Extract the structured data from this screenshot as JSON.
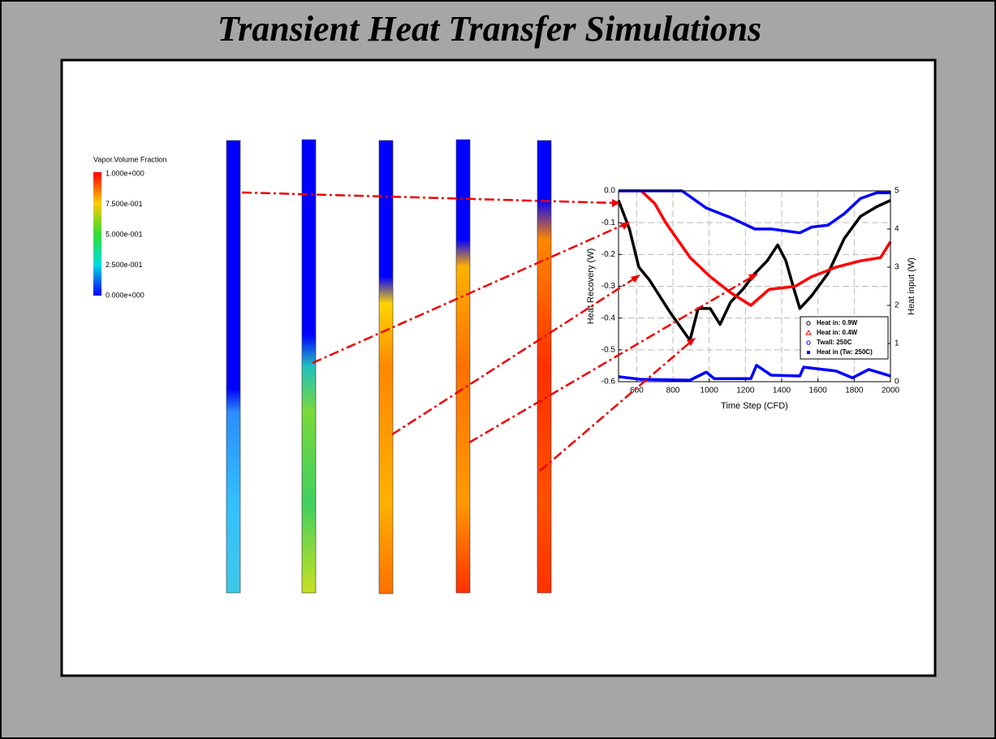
{
  "title": "Transient Heat Transfer Simulations",
  "colorbar": {
    "title": "Vapor.Volume Fraction",
    "ticks": [
      "1.000e+000",
      "7.500e-001",
      "5.000e-001",
      "2.500e-001",
      "0.000e+000"
    ]
  },
  "chart_data": {
    "type": "line",
    "xlabel": "Time Step (CFD)",
    "ylabel": "Heat Recovery (W)",
    "y2label": "Heat input (W)",
    "xlim": [
      500,
      2000
    ],
    "xticks": [
      600,
      800,
      1000,
      1200,
      1400,
      1600,
      1800,
      2000
    ],
    "ylim": [
      -0.6,
      0
    ],
    "yticks": [
      {
        "value": 0,
        "label": "0.0"
      },
      -0.1,
      -0.2,
      -0.3,
      -0.4,
      -0.5,
      -0.6
    ],
    "y2lim": [
      0,
      5
    ],
    "y2ticks": [
      0,
      1,
      2,
      3,
      4,
      5
    ],
    "grid": true,
    "legend": "lower right",
    "series": [
      {
        "name": "Heat in: 0.9W",
        "color": "#000000",
        "marker": "circle",
        "axis": "y",
        "x": [
          500,
          560,
          612,
          670,
          782,
          894,
          939,
          1006,
          1060,
          1118,
          1185,
          1252,
          1320,
          1378,
          1423,
          1468,
          1500,
          1565,
          1655,
          1745,
          1835,
          1924,
          2000
        ],
        "values": [
          -0.03,
          -0.12,
          -0.24,
          -0.28,
          -0.38,
          -0.47,
          -0.37,
          -0.37,
          -0.42,
          -0.35,
          -0.31,
          -0.26,
          -0.22,
          -0.17,
          -0.22,
          -0.31,
          -0.37,
          -0.33,
          -0.26,
          -0.15,
          -0.08,
          -0.05,
          -0.03
        ]
      },
      {
        "name": "Heat in: 0.4W",
        "color": "#ff0000",
        "marker": "triangle",
        "axis": "y",
        "x": [
          500,
          625,
          700,
          760,
          895,
          1006,
          1118,
          1230,
          1330,
          1475,
          1565,
          1700,
          1835,
          1945,
          2000
        ],
        "values": [
          0,
          0,
          -0.04,
          -0.1,
          -0.21,
          -0.27,
          -0.32,
          -0.36,
          -0.31,
          -0.3,
          -0.27,
          -0.24,
          -0.22,
          -0.21,
          -0.16
        ]
      },
      {
        "name": "Twall: 250C",
        "color": "#0000ff",
        "marker": "circle",
        "axis": "y2",
        "x": [
          500,
          850,
          984,
          1118,
          1252,
          1342,
          1500,
          1565,
          1655,
          1745,
          1835,
          1924,
          2000
        ],
        "values": [
          5,
          5,
          4.55,
          4.3,
          4,
          4,
          3.9,
          4.05,
          4.1,
          4.4,
          4.8,
          4.95,
          4.95
        ]
      },
      {
        "name": "Heat in (Tw: 250C)",
        "color": "#0000ff",
        "marker": "square",
        "axis": "y2",
        "x": [
          500,
          625,
          894,
          984,
          1028,
          1230,
          1261,
          1342,
          1500,
          1521,
          1700,
          1790,
          1880,
          2000
        ],
        "values": [
          0.13,
          0.06,
          0.04,
          0.25,
          0.08,
          0.08,
          0.43,
          0.17,
          0.15,
          0.38,
          0.28,
          0.1,
          0.32,
          0.15
        ]
      }
    ]
  }
}
